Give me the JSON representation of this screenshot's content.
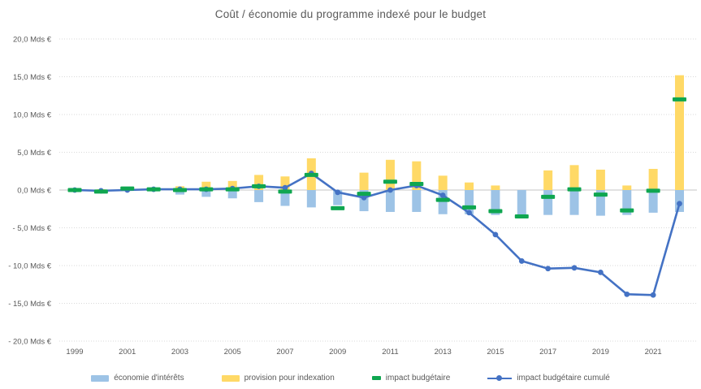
{
  "title": "Coût / économie du programme indexé pour le budget",
  "colors": {
    "economie_bar": "#9DC3E6",
    "provision_bar": "#FFD966",
    "impact_dash": "#0FA650",
    "cumul_line": "#4472C4",
    "grid": "#D9D9D9",
    "zero_line": "#C6C6C6",
    "text": "#595959",
    "background": "#FFFFFF"
  },
  "chart_data": {
    "type": "bar",
    "subtype": "combo-bar-line",
    "title": "Coût / économie du programme indexé pour le budget",
    "xlabel": "",
    "ylabel": "",
    "ylim": [
      -20,
      20
    ],
    "grid": "horizontal-dotted",
    "legend_position": "bottom",
    "unit": "Mds €",
    "categories": [
      1999,
      2000,
      2001,
      2002,
      2003,
      2004,
      2005,
      2006,
      2007,
      2008,
      2009,
      2010,
      2011,
      2012,
      2013,
      2014,
      2015,
      2016,
      2017,
      2018,
      2019,
      2020,
      2021,
      2022
    ],
    "x_tick_labels": [
      "1999",
      "2001",
      "2003",
      "2005",
      "2007",
      "2009",
      "2011",
      "2013",
      "2015",
      "2017",
      "2019",
      "2021"
    ],
    "y_ticks": [
      20,
      15,
      10,
      5,
      0,
      -5,
      -10,
      -15,
      -20
    ],
    "y_tick_labels": [
      "20,0 Mds €",
      "15,0 Mds €",
      "10,0 Mds €",
      "5,0 Mds €",
      "0,0 Mds €",
      "- 5,0 Mds €",
      "- 10,0 Mds €",
      "- 15,0 Mds €",
      "- 20,0 Mds €"
    ],
    "series": [
      {
        "name": "économie d'intérêts",
        "render": "bar",
        "color": "#9DC3E6",
        "values": [
          -0.2,
          -0.3,
          -0.1,
          -0.1,
          -0.6,
          -0.9,
          -1.1,
          -1.6,
          -2.1,
          -2.3,
          -2.0,
          -2.8,
          -2.9,
          -2.9,
          -3.2,
          -3.2,
          -3.3,
          -3.4,
          -3.3,
          -3.3,
          -3.4,
          -3.3,
          -3.0,
          -2.9
        ]
      },
      {
        "name": "provision pour indexation",
        "render": "bar",
        "color": "#FFD966",
        "values": [
          0.1,
          0.1,
          0.3,
          0.2,
          0.5,
          1.1,
          1.2,
          2.0,
          1.8,
          4.2,
          0.0,
          2.3,
          4.0,
          3.8,
          1.9,
          1.0,
          0.6,
          0.0,
          2.6,
          3.3,
          2.7,
          0.6,
          2.8,
          15.2
        ]
      },
      {
        "name": "impact budgétaire",
        "render": "dash-marker",
        "color": "#0FA650",
        "values": [
          0.0,
          -0.2,
          0.2,
          0.1,
          0.0,
          0.1,
          0.1,
          0.5,
          -0.2,
          2.0,
          -2.4,
          -0.5,
          1.1,
          0.8,
          -1.3,
          -2.3,
          -2.8,
          -3.5,
          -0.9,
          0.1,
          -0.6,
          -2.7,
          -0.1,
          12.0
        ]
      },
      {
        "name": "impact budgétaire cumulé",
        "render": "line-marker",
        "color": "#4472C4",
        "values": [
          0.0,
          -0.1,
          0.0,
          0.1,
          0.1,
          0.1,
          0.2,
          0.5,
          0.3,
          2.2,
          -0.3,
          -1.0,
          0.0,
          0.6,
          -0.7,
          -3.0,
          -5.9,
          -9.4,
          -10.4,
          -10.3,
          -10.9,
          -13.8,
          -13.9,
          -1.8
        ]
      }
    ]
  },
  "legend": {
    "items": [
      {
        "label": "économie d'intérêts",
        "swatch": "bar"
      },
      {
        "label": "provision pour indexation",
        "swatch": "bar"
      },
      {
        "label": "impact budgétaire",
        "swatch": "dash"
      },
      {
        "label": "impact budgétaire cumulé",
        "swatch": "line"
      }
    ]
  }
}
